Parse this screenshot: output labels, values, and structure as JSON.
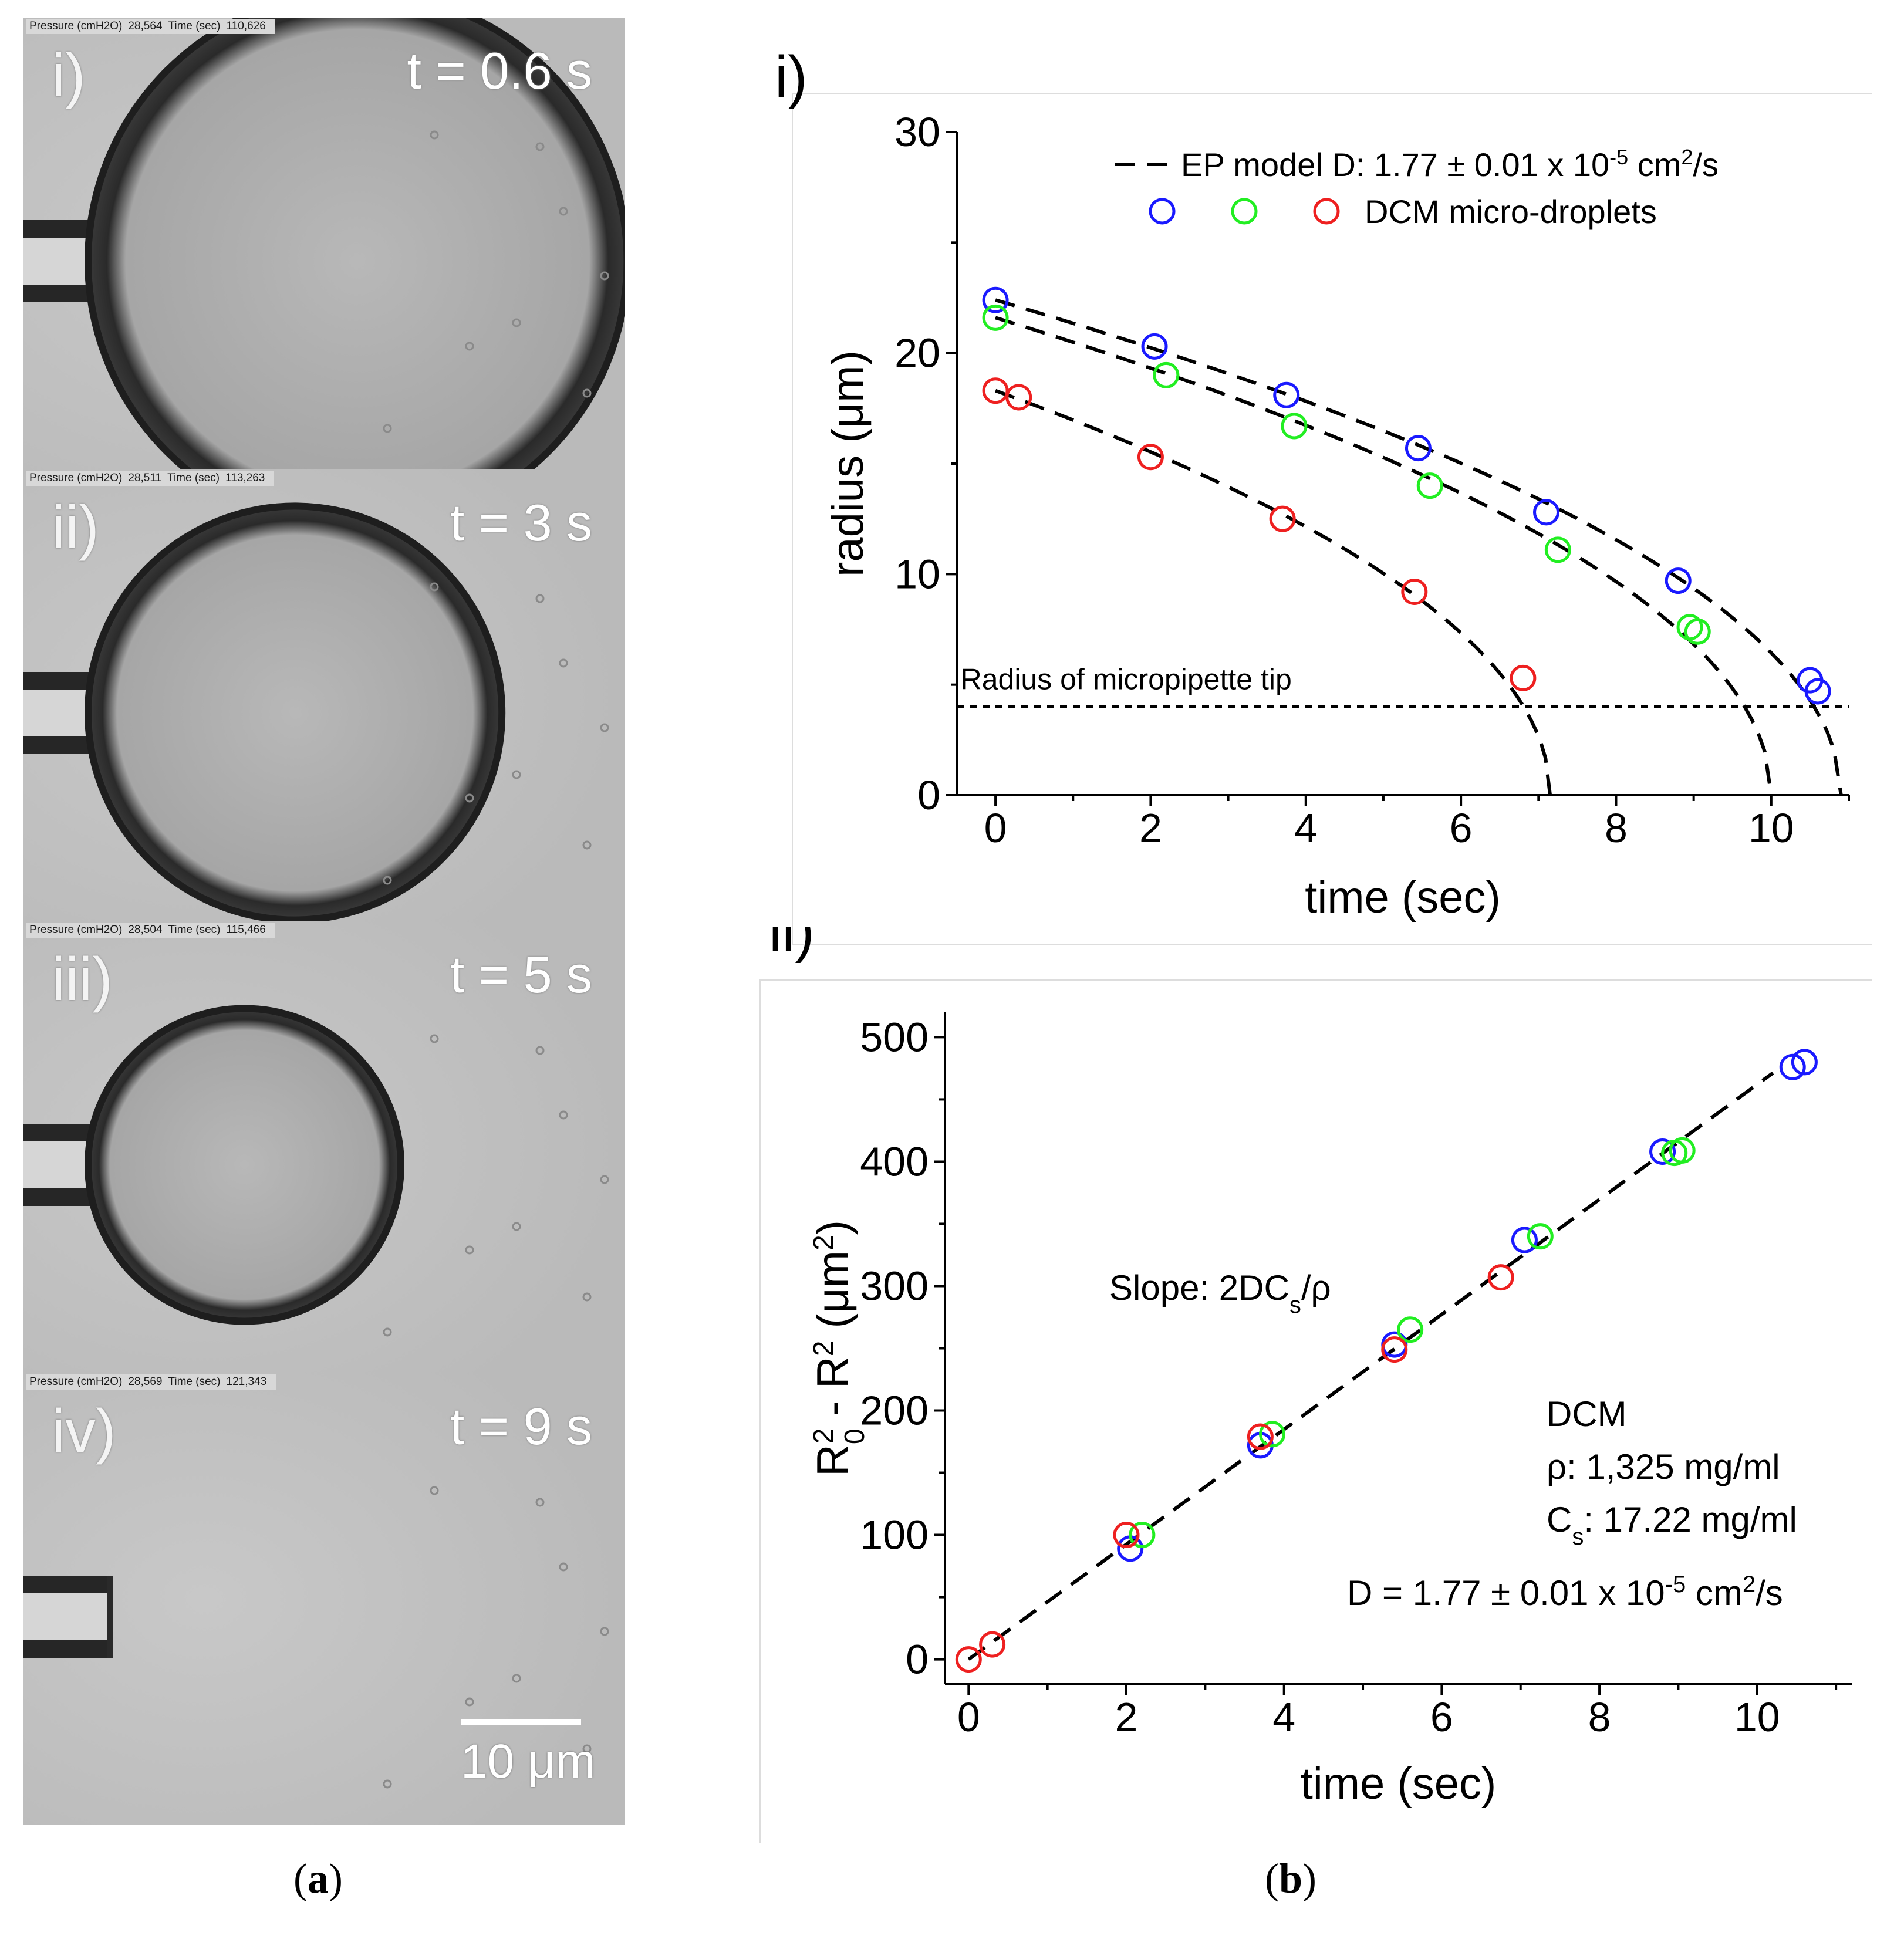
{
  "panel_a": {
    "caption_letter": "a",
    "frames": [
      {
        "label": "i)",
        "time": "t = 0.6 s",
        "pressure_label": "Pressure (cmH2O)",
        "pressure": "28,564",
        "time_label": "Time (sec)",
        "time_value": "110,626",
        "droplet_radius_um": 22.4
      },
      {
        "label": "ii)",
        "time": "t = 3 s",
        "pressure_label": "Pressure (cmH2O)",
        "pressure": "28,511",
        "time_label": "Time (sec)",
        "time_value": "113,263",
        "droplet_radius_um": 17.2
      },
      {
        "label": "iii)",
        "time": "t = 5 s",
        "pressure_label": "Pressure (cmH2O)",
        "pressure": "28,504",
        "time_label": "Time (sec)",
        "time_value": "115,466",
        "droplet_radius_um": 13.0
      },
      {
        "label": "iv)",
        "time": "t = 9 s",
        "pressure_label": "Pressure (cmH2O)",
        "pressure": "28,569",
        "time_label": "Time (sec)",
        "time_value": "121,343",
        "droplet_radius_um": 0
      }
    ],
    "scale_bar": "10 μm"
  },
  "panel_b_caption_letter": "b",
  "colors": {
    "blue": "#1a1aff",
    "green": "#22ee22",
    "red": "#ee2020"
  },
  "chart_data": [
    {
      "type": "scatter",
      "panel_label": "i)",
      "xlabel": "time (sec)",
      "ylabel_parts": [
        "radius (",
        "μ",
        "m)"
      ],
      "xlim": [
        -0.5,
        11
      ],
      "ylim": [
        0,
        30
      ],
      "xticks": [
        0,
        2,
        4,
        6,
        8,
        10
      ],
      "yticks": [
        0,
        10,
        20,
        30
      ],
      "legend": {
        "model_text": "EP model D: 1.77  ± 0.01  x 10",
        "model_exp": "-5",
        "model_unit": " cm",
        "model_unit_exp": "2",
        "model_unit_end": "/s",
        "series_text": "DCM micro-droplets"
      },
      "threshold_label": "Radius of micropipette tip",
      "threshold_value": 4,
      "series": [
        {
          "name": "blue",
          "x": [
            0,
            2.05,
            3.75,
            5.45,
            7.1,
            8.8,
            10.5,
            10.6
          ],
          "y": [
            22.4,
            20.3,
            18.1,
            15.7,
            12.8,
            9.7,
            5.2,
            4.7
          ]
        },
        {
          "name": "green",
          "x": [
            0,
            2.2,
            3.85,
            5.6,
            7.25,
            8.95,
            9.05
          ],
          "y": [
            21.6,
            19.0,
            16.7,
            14.0,
            11.1,
            7.6,
            7.4
          ]
        },
        {
          "name": "red",
          "x": [
            0,
            0.3,
            2.0,
            3.7,
            5.4,
            6.8
          ],
          "y": [
            18.3,
            18.0,
            15.3,
            12.5,
            9.2,
            5.3
          ]
        }
      ],
      "model_fits": [
        {
          "R0": 22.4,
          "t_end": 10.9
        },
        {
          "R0": 21.6,
          "t_end": 10.0
        },
        {
          "R0": 18.3,
          "t_end": 7.15
        }
      ]
    },
    {
      "type": "scatter",
      "panel_label": "ii)",
      "xlabel": "time (sec)",
      "ylabel": "R0² - R² (μm²)",
      "ylabel_parts": {
        "r": "R",
        "sub0": "0",
        "sup2a": "2",
        "mid": " - R",
        "sup2b": "2",
        "unit_open": " (",
        "mu": "μ",
        "unit_m": "m",
        "sup2c": "2",
        "unit_close": ")"
      },
      "xlim": [
        -0.3,
        11.2
      ],
      "ylim": [
        -20,
        520
      ],
      "xticks": [
        0,
        2,
        4,
        6,
        8,
        10
      ],
      "yticks": [
        0,
        100,
        200,
        300,
        400,
        500
      ],
      "slope_label": {
        "pre": "Slope: 2DC",
        "sub": "s",
        "post": "/ρ"
      },
      "info": {
        "solvent": "DCM",
        "rho": "ρ: 1,325 mg/ml",
        "cs_pre": "C",
        "cs_sub": "s",
        "cs_post": ": 17.22 mg/ml",
        "d_text": "D = 1.77 ± 0.01  x 10",
        "d_exp": "-5",
        "d_unit": " cm",
        "d_unit_exp": "2",
        "d_unit_end": "/s"
      },
      "fit_line": {
        "slope": 46.2,
        "intercept": 0,
        "x_range": [
          0,
          10.2
        ]
      },
      "series": [
        {
          "name": "blue",
          "x": [
            2.05,
            3.7,
            5.4,
            7.05,
            8.8,
            10.45,
            10.6
          ],
          "y": [
            89,
            172,
            253,
            337,
            408,
            476,
            480
          ]
        },
        {
          "name": "green",
          "x": [
            2.2,
            3.85,
            5.6,
            7.25,
            8.95,
            9.05
          ],
          "y": [
            100,
            181,
            265,
            340,
            407,
            409
          ]
        },
        {
          "name": "red",
          "x": [
            0,
            0.3,
            2.0,
            3.7,
            5.4,
            6.75
          ],
          "y": [
            0,
            12,
            100,
            179,
            249,
            307
          ]
        }
      ]
    }
  ]
}
